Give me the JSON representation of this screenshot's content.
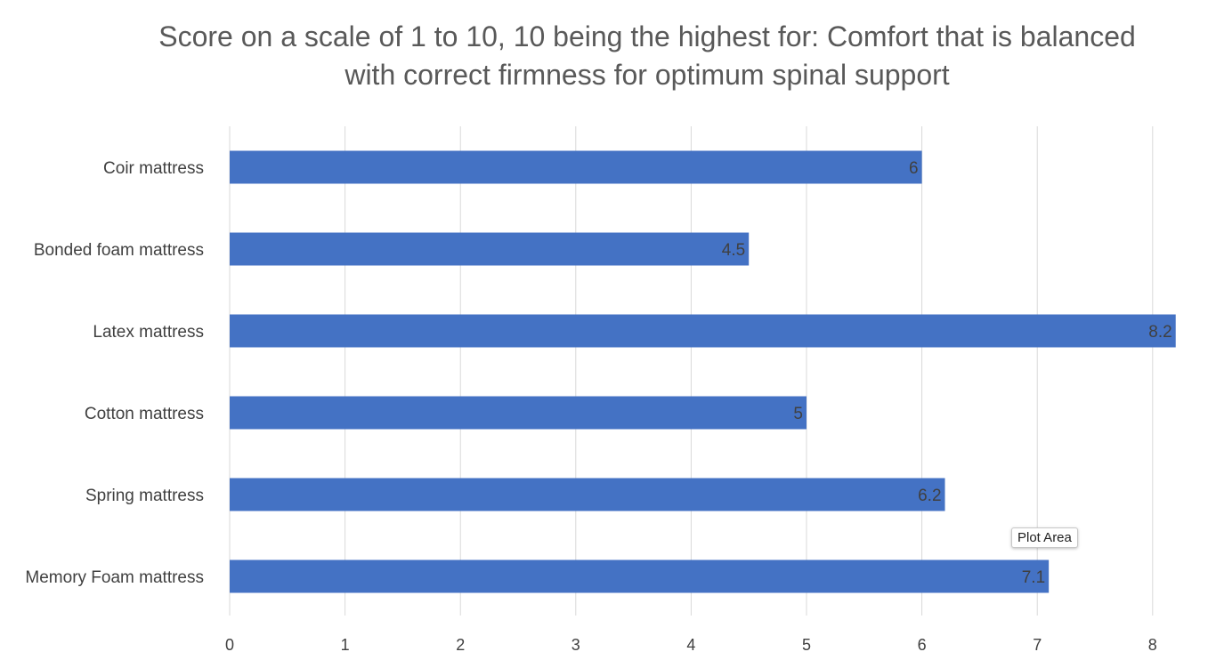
{
  "chart_data": {
    "type": "bar",
    "orientation": "horizontal",
    "title_lines": [
      "Score on a scale of 1 to 10, 10 being the highest for: Comfort that is balanced",
      "with correct firmness for optimum spinal support"
    ],
    "categories": [
      "Coir mattress",
      "Bonded foam mattress",
      "Latex mattress",
      "Cotton mattress",
      "Spring mattress",
      "Memory Foam mattress"
    ],
    "values": [
      6,
      4.5,
      8.2,
      5,
      6.2,
      7.1
    ],
    "data_labels": [
      "6",
      "4.5",
      "8.2",
      "5",
      "6.2",
      "7.1"
    ],
    "x_ticks": [
      "0",
      "1",
      "2",
      "3",
      "4",
      "5",
      "6",
      "7",
      "8"
    ],
    "xlim": [
      0,
      8.2
    ],
    "xlabel": "",
    "ylabel": "",
    "grid": "vertical",
    "legend": "none",
    "bar_color": "#4472C4",
    "grid_color": "#d9d9d9"
  },
  "tooltip": {
    "text": "Plot Area"
  }
}
